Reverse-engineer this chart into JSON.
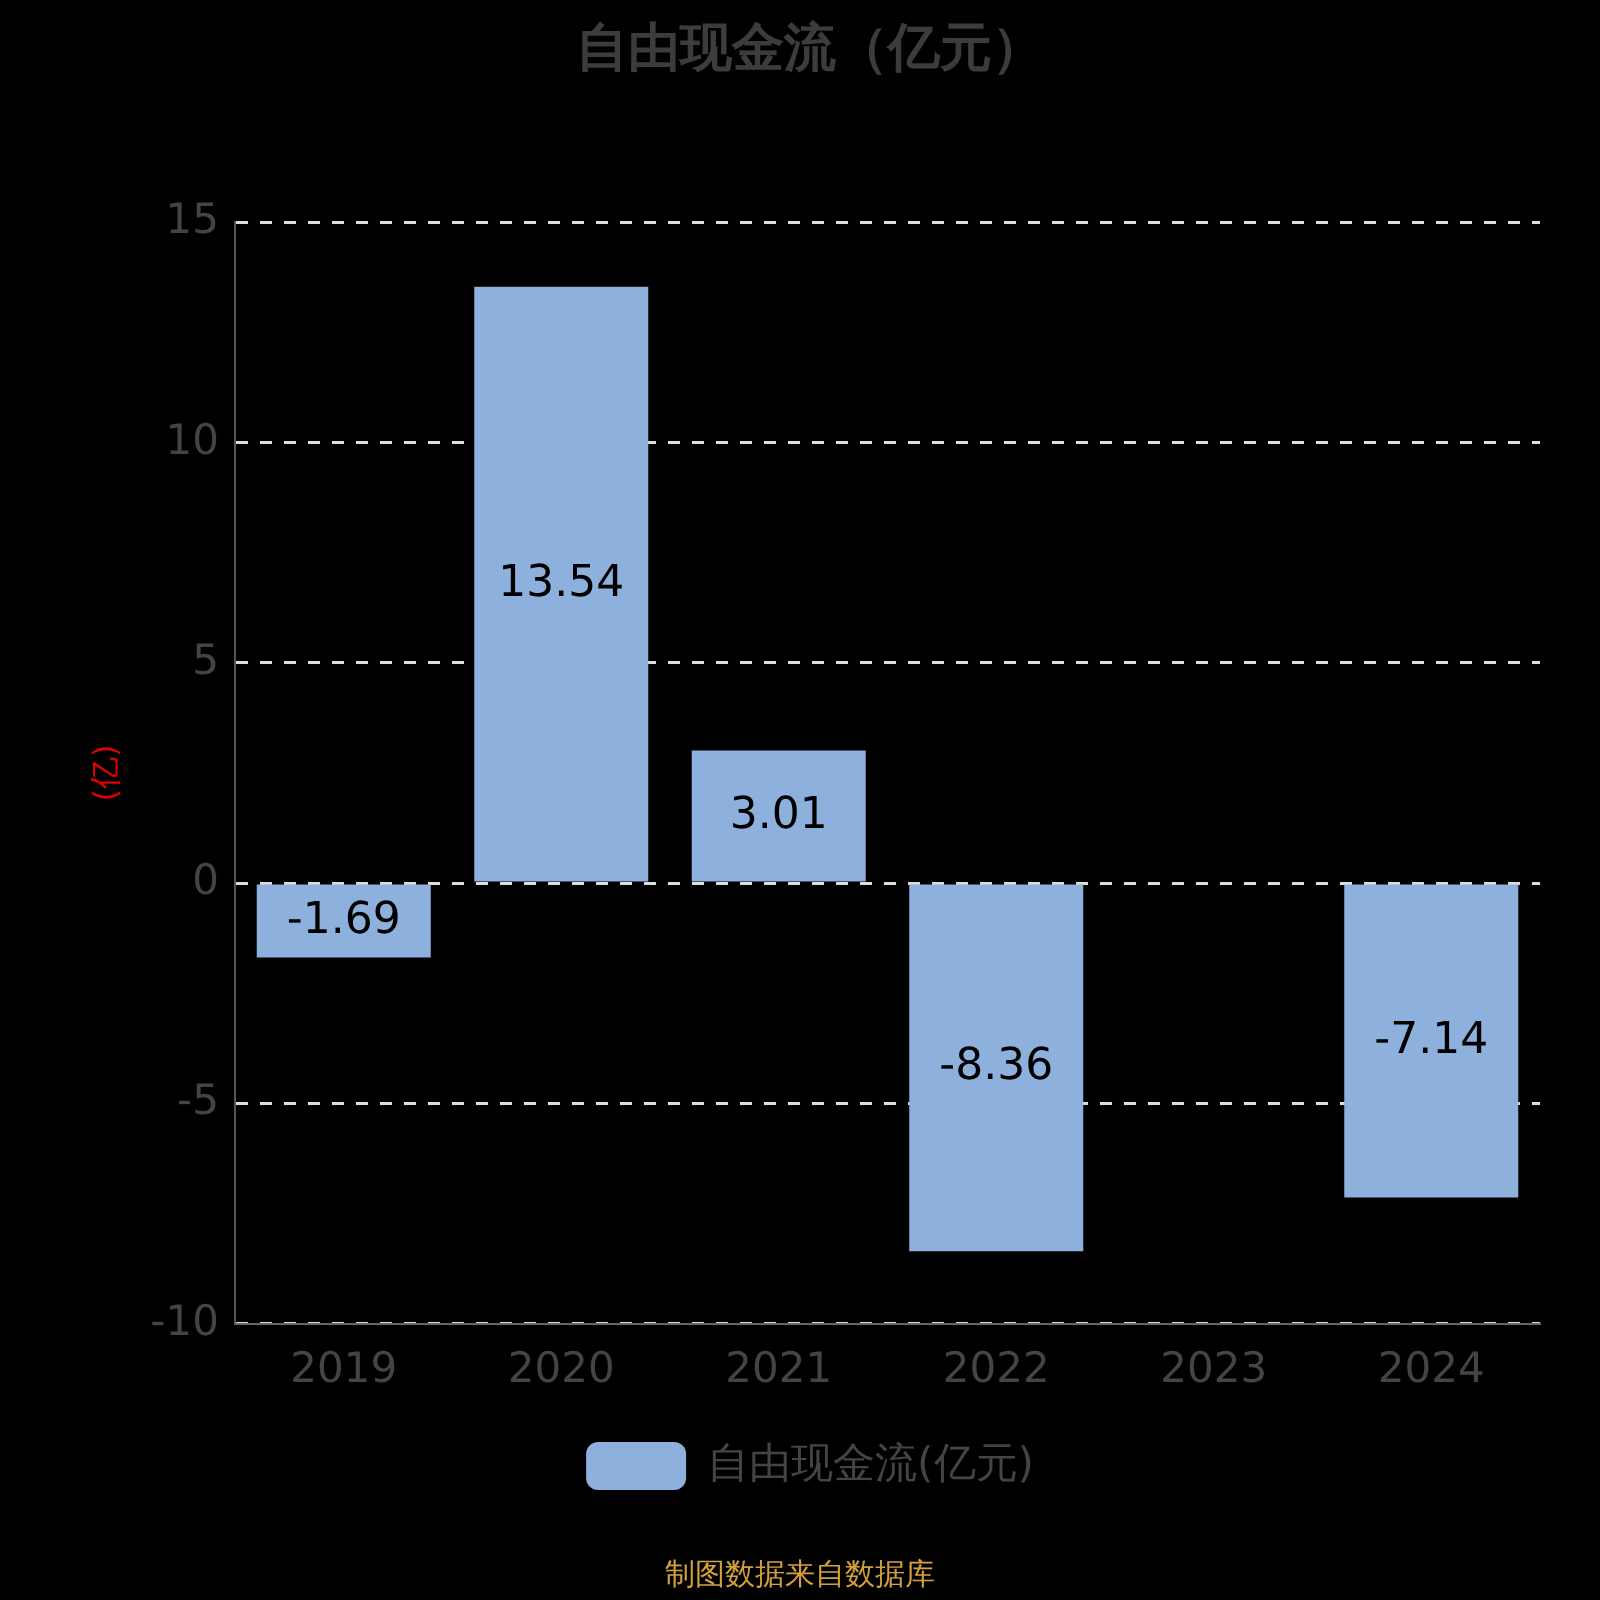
{
  "chart_data": {
    "type": "bar",
    "title": "自由现金流（亿元）",
    "ylabel": "(亿)",
    "categories": [
      "2019",
      "2020",
      "2021",
      "2022",
      "2023",
      "2024"
    ],
    "series": [
      {
        "name": "自由现金流(亿元)",
        "color": "#8eb0dc",
        "values": [
          -1.69,
          13.54,
          3.01,
          -8.36,
          null,
          -7.14
        ]
      }
    ],
    "ylim": [
      -10,
      15
    ],
    "yticks": [
      -10,
      -5,
      0,
      5,
      10,
      15
    ],
    "grid": "y",
    "legend": "bottom",
    "data_labels": true,
    "annotations": [
      "制图数据来自数据库"
    ]
  }
}
